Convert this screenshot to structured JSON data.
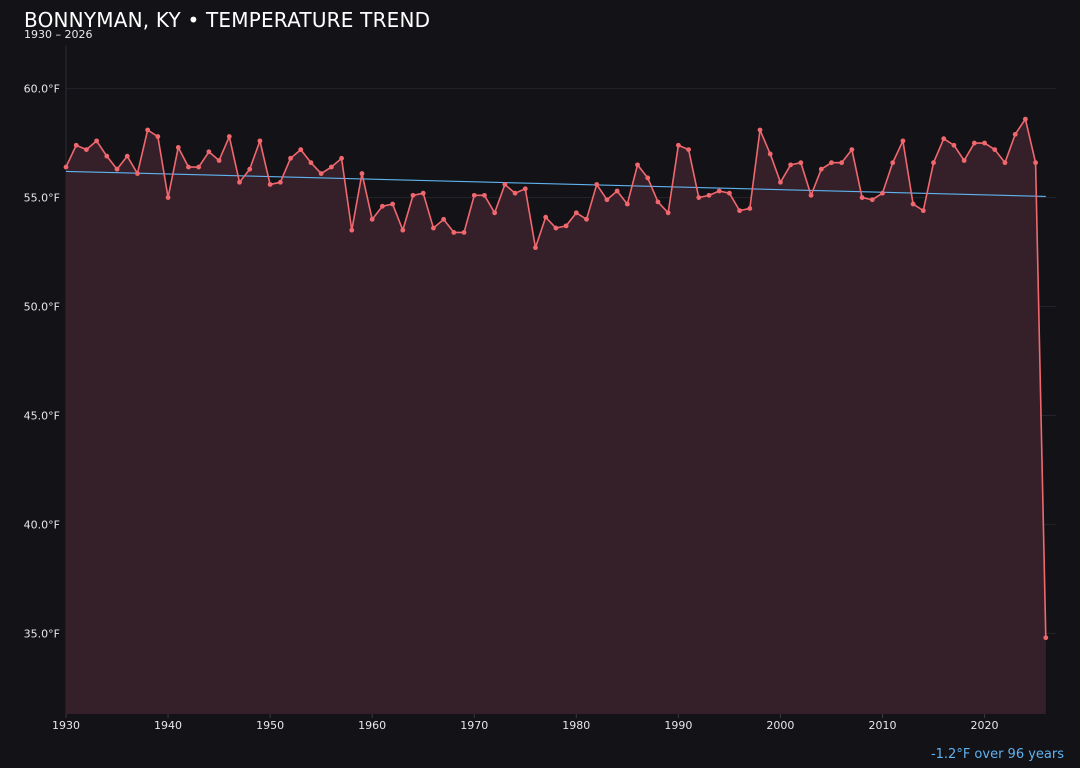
{
  "header": {
    "title": "BONNYMAN, KY • TEMPERATURE TREND",
    "subtitle": "1930 – 2026"
  },
  "footer": {
    "trend_note": "-1.2°F over 96 years"
  },
  "colors": {
    "background": "#131217",
    "line": "#f0686e",
    "area_fill": "#35202a",
    "trend": "#5fb3f0",
    "grid": "#24222a",
    "text": "#e6e6ea"
  },
  "chart_data": {
    "type": "line",
    "title": "BONNYMAN, KY • TEMPERATURE TREND",
    "subtitle": "1930 – 2026",
    "xlabel": "",
    "ylabel": "",
    "x": [
      1930,
      1931,
      1932,
      1933,
      1934,
      1935,
      1936,
      1937,
      1938,
      1939,
      1940,
      1941,
      1942,
      1943,
      1944,
      1945,
      1946,
      1947,
      1948,
      1949,
      1950,
      1951,
      1952,
      1953,
      1954,
      1955,
      1956,
      1957,
      1958,
      1959,
      1960,
      1961,
      1962,
      1963,
      1964,
      1965,
      1966,
      1967,
      1968,
      1969,
      1970,
      1971,
      1972,
      1973,
      1974,
      1975,
      1976,
      1977,
      1978,
      1979,
      1980,
      1981,
      1982,
      1983,
      1984,
      1985,
      1986,
      1987,
      1988,
      1989,
      1990,
      1991,
      1992,
      1993,
      1994,
      1995,
      1996,
      1997,
      1998,
      1999,
      2000,
      2001,
      2002,
      2003,
      2004,
      2005,
      2006,
      2007,
      2008,
      2009,
      2010,
      2011,
      2012,
      2013,
      2014,
      2015,
      2016,
      2017,
      2018,
      2019,
      2020,
      2021,
      2022,
      2023,
      2024,
      2025,
      2026
    ],
    "series": [
      {
        "values": [
          56.4,
          57.4,
          57.2,
          57.6,
          56.9,
          56.3,
          56.9,
          56.1,
          58.1,
          57.8,
          55.0,
          57.3,
          56.4,
          56.4,
          57.1,
          56.7,
          57.8,
          55.7,
          56.3,
          57.6,
          55.6,
          55.7,
          56.8,
          57.2,
          56.6,
          56.1,
          56.4,
          56.8,
          53.5,
          56.1,
          54.0,
          54.6,
          54.7,
          53.5,
          55.1,
          55.2,
          53.6,
          54.0,
          53.4,
          53.4,
          55.1,
          55.1,
          54.3,
          55.6,
          55.2,
          55.4,
          52.7,
          54.1,
          53.6,
          53.7,
          54.3,
          54.0,
          55.6,
          54.9,
          55.3,
          54.7,
          56.5,
          55.9,
          54.8,
          54.3,
          57.4,
          57.2,
          55.0,
          55.1,
          55.3,
          55.2,
          54.4,
          54.5,
          58.1,
          57.0,
          55.7,
          56.5,
          56.6,
          55.1,
          56.3,
          56.6,
          56.6,
          57.2,
          55.0,
          54.9,
          55.2,
          56.6,
          57.6,
          54.7,
          54.4,
          56.6,
          57.7,
          57.4,
          56.7,
          57.5,
          57.5,
          57.2,
          56.6,
          57.9,
          58.6,
          56.6,
          34.8
        ]
      }
    ],
    "trend": {
      "start": [
        1930,
        56.2
      ],
      "end": [
        2026,
        55.05
      ]
    },
    "xlim": [
      1930,
      2027
    ],
    "ylim": [
      31.3,
      62.0
    ],
    "xticks": [
      1930,
      1940,
      1950,
      1960,
      1970,
      1980,
      1990,
      2000,
      2010,
      2020
    ],
    "xtick_labels": [
      "1930",
      "1940",
      "1950",
      "1960",
      "1970",
      "1980",
      "1990",
      "2000",
      "2010",
      "2020"
    ],
    "yticks": [
      35,
      40,
      45,
      50,
      55,
      60
    ],
    "ytick_labels": [
      "35.0°F",
      "40.0°F",
      "45.0°F",
      "50.0°F",
      "55.0°F",
      "60.0°F"
    ],
    "grid": true,
    "legend": "none"
  }
}
